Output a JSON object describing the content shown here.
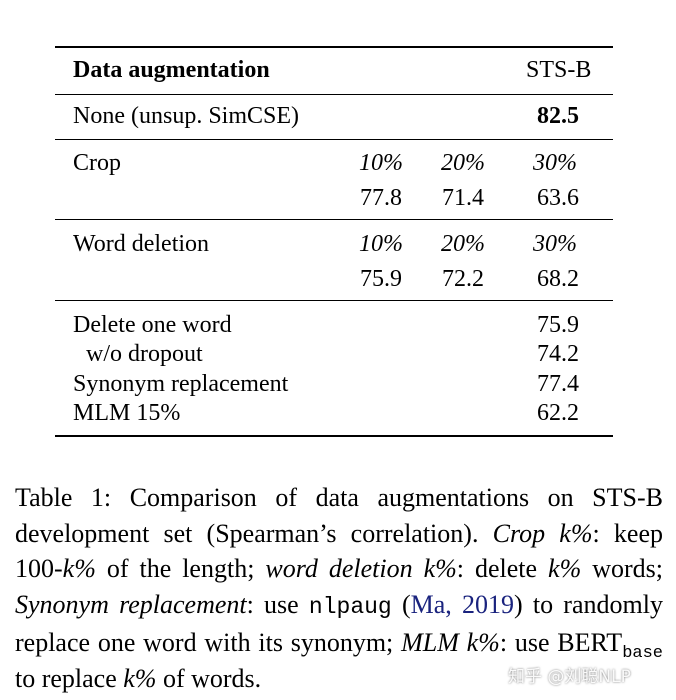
{
  "table": {
    "header": {
      "col_label": "Data augmentation",
      "col_metric": "STS-B"
    },
    "baseline": {
      "label": "None (unsup. SimCSE)",
      "value": "82.5"
    },
    "crop": {
      "label": "Crop",
      "pcts": [
        "10%",
        "20%",
        "30%"
      ],
      "values": [
        "77.8",
        "71.4",
        "63.6"
      ]
    },
    "word_deletion": {
      "label": "Word deletion",
      "pcts": [
        "10%",
        "20%",
        "30%"
      ],
      "values": [
        "75.9",
        "72.2",
        "68.2"
      ]
    },
    "others": [
      {
        "label": "Delete one word",
        "value": "75.9"
      },
      {
        "label": "w/o dropout",
        "value": "74.2"
      },
      {
        "label": "Synonym replacement",
        "value": "77.4"
      },
      {
        "label": "MLM 15%",
        "value": "62.2"
      }
    ]
  },
  "caption": {
    "p1": "Table 1: Comparison of data augmentations on STS-B development set (Spearman’s correlation). ",
    "p2": "Crop k%",
    "p3": ": keep 100-",
    "p4": "k%",
    "p5": " of the length; ",
    "p6": "word deletion k%",
    "p7": ": delete ",
    "p8": "k%",
    "p9": " words; ",
    "p10": "Synonym replacement",
    "p11": ": use ",
    "p12": "nlpaug",
    "p13": " (",
    "p14": "Ma, 2019",
    "p15": ") to randomly replace one word with its synonym; ",
    "p16": "MLM k%",
    "p17": ": use BERT",
    "p18": "base",
    "p19": " to replace ",
    "p20": "k%",
    "p21": " of words."
  },
  "watermark": "知乎 @刘聪NLP"
}
